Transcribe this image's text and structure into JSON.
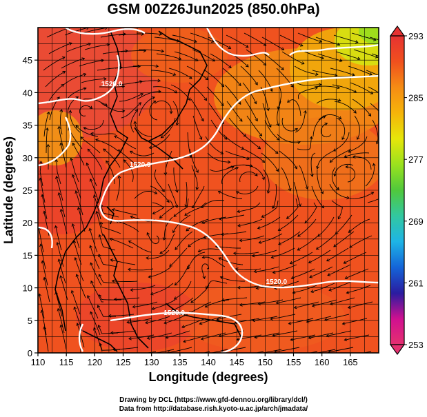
{
  "title": "GSM 00Z26Jun2025 (850.0hPa)",
  "xlabel": "Longitude (degrees)",
  "ylabel": "Latitude  (degrees)",
  "credits": [
    "Drawing by DCL (https://www.gfd-dennou.org/library/dcl/)",
    "Data from http://database.rish.kyoto-u.ac.jp/arch/jmadata/"
  ],
  "map": {
    "lon_range": [
      110,
      170
    ],
    "lat_range": [
      0,
      50
    ],
    "x_ticks": [
      110,
      115,
      120,
      125,
      130,
      135,
      140,
      145,
      150,
      155,
      160,
      165
    ],
    "y_ticks": [
      0,
      5,
      10,
      15,
      20,
      25,
      30,
      35,
      40,
      45
    ],
    "grid": true,
    "colorbar": {
      "min": 253,
      "max": 293,
      "tick_labels": [
        "293",
        "285",
        "277",
        "269",
        "261",
        "253"
      ],
      "colors": [
        "#e53070",
        "#d01090",
        "#2a1ca0",
        "#1464d8",
        "#1eb4e6",
        "#32c8a0",
        "#50c83c",
        "#9be21e",
        "#e6e60a",
        "#f5b40a",
        "#f58c14",
        "#f0501e",
        "#e63232"
      ]
    },
    "contour_labels": [
      {
        "text": "1520.0",
        "lon": 128,
        "lat": 28.6
      },
      {
        "text": "1520.0",
        "lon": 152,
        "lat": 10.6
      },
      {
        "text": "1520.0",
        "lon": 134,
        "lat": 5.8
      },
      {
        "text": "1520.0",
        "lon": 123,
        "lat": 41
      }
    ]
  }
}
